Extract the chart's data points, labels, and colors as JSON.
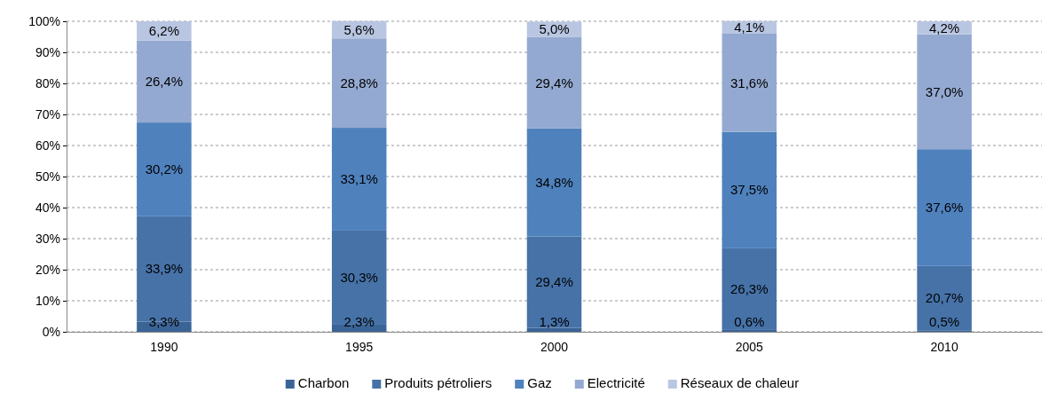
{
  "chart_data": {
    "type": "bar",
    "stacked": true,
    "categories": [
      "1990",
      "1995",
      "2000",
      "2005",
      "2010"
    ],
    "series": [
      {
        "name": "Charbon",
        "color": "#3b6496",
        "values": [
          3.3,
          2.3,
          1.3,
          0.6,
          0.5
        ],
        "value_labels": [
          "3,3%",
          "2,3%",
          "1,3%",
          "0,6%",
          "0,5%"
        ]
      },
      {
        "name": "Produits pétroliers",
        "color": "#4672a8",
        "values": [
          33.9,
          30.3,
          29.4,
          26.3,
          20.7
        ],
        "value_labels": [
          "33,9%",
          "30,3%",
          "29,4%",
          "26,3%",
          "20,7%"
        ]
      },
      {
        "name": "Gaz",
        "color": "#4f81bd",
        "values": [
          30.2,
          33.1,
          34.8,
          37.5,
          37.6
        ],
        "value_labels": [
          "30,2%",
          "33,1%",
          "34,8%",
          "37,5%",
          "37,6%"
        ]
      },
      {
        "name": "Electricité",
        "color": "#94a9d1",
        "values": [
          26.4,
          28.8,
          29.4,
          31.6,
          37.0
        ],
        "value_labels": [
          "26,4%",
          "28,8%",
          "29,4%",
          "31,6%",
          "37,0%"
        ]
      },
      {
        "name": "Réseaux de chaleur",
        "color": "#b9c6e2",
        "values": [
          6.2,
          5.6,
          5.0,
          4.1,
          4.2
        ],
        "value_labels": [
          "6,2%",
          "5,6%",
          "5,0%",
          "4,1%",
          "4,2%"
        ]
      }
    ],
    "ylim": [
      0,
      100
    ],
    "yticks": [
      {
        "value": 0,
        "label": "0%"
      },
      {
        "value": 10,
        "label": "10%"
      },
      {
        "value": 20,
        "label": "20%"
      },
      {
        "value": 30,
        "label": "30%"
      },
      {
        "value": 40,
        "label": "40%"
      },
      {
        "value": 50,
        "label": "50%"
      },
      {
        "value": 60,
        "label": "60%"
      },
      {
        "value": 70,
        "label": "70%"
      },
      {
        "value": 80,
        "label": "80%"
      },
      {
        "value": 90,
        "label": "90%"
      },
      {
        "value": 100,
        "label": "100%"
      }
    ],
    "grid": "y",
    "legend": "bottom"
  }
}
